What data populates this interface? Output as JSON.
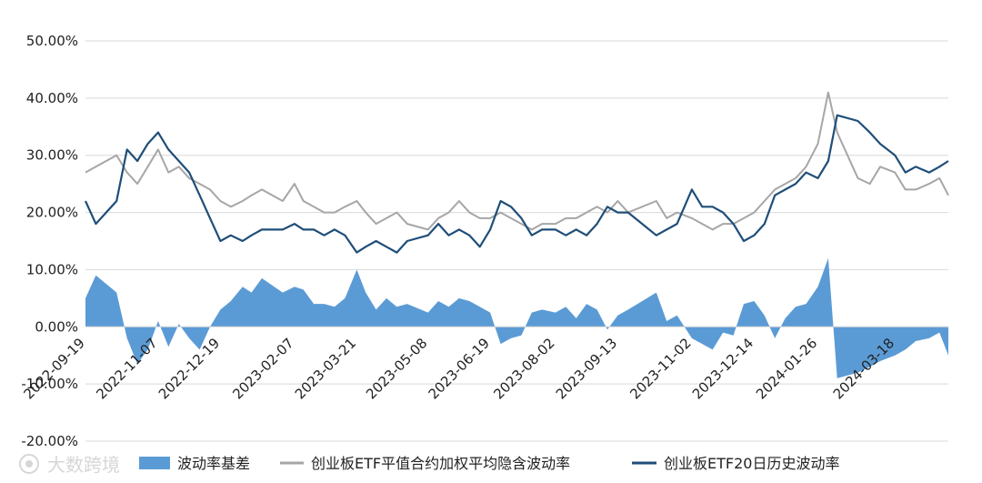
{
  "chart_data": {
    "type": "area+line",
    "title": "",
    "xlabel": "",
    "ylabel": "",
    "ylim": [
      -0.2,
      0.5
    ],
    "y_ticks": [
      0.5,
      0.4,
      0.3,
      0.2,
      0.1,
      0.0,
      -0.1,
      -0.2
    ],
    "y_tick_labels": [
      "50.00%",
      "40.00%",
      "30.00%",
      "20.00%",
      "10.00%",
      "0.00%",
      "-10.00%",
      "-20.00%"
    ],
    "x_range": [
      "2022-09-19",
      "2024-04-23"
    ],
    "x_tick_labels": [
      "2022-09-19",
      "2022-11-07",
      "2022-12-19",
      "2023-02-07",
      "2023-03-21",
      "2023-05-08",
      "2023-06-19",
      "2023-08-02",
      "2023-09-13",
      "2023-11-02",
      "2023-12-14",
      "2024-01-26",
      "2024-03-18"
    ],
    "grid": "horizontal",
    "legend_position": "bottom",
    "colors": {
      "spread": "#5b9bd5",
      "implied": "#a6a6a6",
      "historical": "#1f4e79"
    },
    "series": [
      {
        "name": "波动率基差",
        "kind": "area",
        "x": [
          "2022-09-19",
          "2022-09-26",
          "2022-10-10",
          "2022-10-17",
          "2022-10-24",
          "2022-10-31",
          "2022-11-07",
          "2022-11-14",
          "2022-11-21",
          "2022-11-28",
          "2022-12-05",
          "2022-12-12",
          "2022-12-19",
          "2022-12-26",
          "2023-01-03",
          "2023-01-09",
          "2023-01-16",
          "2023-01-30",
          "2023-02-07",
          "2023-02-13",
          "2023-02-20",
          "2023-02-27",
          "2023-03-06",
          "2023-03-13",
          "2023-03-21",
          "2023-03-27",
          "2023-04-03",
          "2023-04-10",
          "2023-04-17",
          "2023-04-24",
          "2023-05-08",
          "2023-05-15",
          "2023-05-22",
          "2023-05-29",
          "2023-06-05",
          "2023-06-12",
          "2023-06-19",
          "2023-06-26",
          "2023-07-03",
          "2023-07-10",
          "2023-07-17",
          "2023-07-24",
          "2023-08-02",
          "2023-08-09",
          "2023-08-16",
          "2023-08-23",
          "2023-08-30",
          "2023-09-06",
          "2023-09-13",
          "2023-09-20",
          "2023-10-09",
          "2023-10-16",
          "2023-10-23",
          "2023-11-02",
          "2023-11-09",
          "2023-11-16",
          "2023-11-23",
          "2023-11-30",
          "2023-12-07",
          "2023-12-14",
          "2023-12-21",
          "2023-12-28",
          "2024-01-04",
          "2024-01-11",
          "2024-01-18",
          "2024-01-26",
          "2024-02-02",
          "2024-02-08",
          "2024-02-22",
          "2024-03-01",
          "2024-03-08",
          "2024-03-18",
          "2024-03-25",
          "2024-04-01",
          "2024-04-10",
          "2024-04-17",
          "2024-04-23"
        ],
        "values": [
          0.05,
          0.09,
          0.06,
          -0.02,
          -0.065,
          -0.04,
          0.01,
          -0.035,
          0.005,
          -0.02,
          -0.04,
          0.0,
          0.03,
          0.045,
          0.07,
          0.06,
          0.085,
          0.06,
          0.07,
          0.065,
          0.04,
          0.04,
          0.035,
          0.05,
          0.1,
          0.06,
          0.03,
          0.05,
          0.035,
          0.04,
          0.025,
          0.045,
          0.035,
          0.05,
          0.045,
          0.035,
          0.025,
          -0.03,
          -0.02,
          -0.015,
          0.025,
          0.03,
          0.025,
          0.035,
          0.015,
          0.04,
          0.03,
          -0.005,
          0.02,
          0.03,
          0.06,
          0.01,
          0.02,
          -0.02,
          -0.03,
          -0.04,
          -0.01,
          -0.015,
          0.04,
          0.045,
          0.02,
          -0.02,
          0.015,
          0.035,
          0.04,
          0.07,
          0.12,
          -0.09,
          -0.08,
          -0.07,
          -0.06,
          -0.05,
          -0.04,
          -0.025,
          -0.02,
          -0.01,
          -0.05
        ]
      },
      {
        "name": "创业板ETF平值合约加权平均隐含波动率",
        "kind": "line",
        "x": [
          "2022-09-19",
          "2022-09-26",
          "2022-10-10",
          "2022-10-17",
          "2022-10-24",
          "2022-10-31",
          "2022-11-07",
          "2022-11-14",
          "2022-11-21",
          "2022-11-28",
          "2022-12-05",
          "2022-12-12",
          "2022-12-19",
          "2022-12-26",
          "2023-01-03",
          "2023-01-09",
          "2023-01-16",
          "2023-01-30",
          "2023-02-07",
          "2023-02-13",
          "2023-02-20",
          "2023-02-27",
          "2023-03-06",
          "2023-03-13",
          "2023-03-21",
          "2023-03-27",
          "2023-04-03",
          "2023-04-10",
          "2023-04-17",
          "2023-04-24",
          "2023-05-08",
          "2023-05-15",
          "2023-05-22",
          "2023-05-29",
          "2023-06-05",
          "2023-06-12",
          "2023-06-19",
          "2023-06-26",
          "2023-07-03",
          "2023-07-10",
          "2023-07-17",
          "2023-07-24",
          "2023-08-02",
          "2023-08-09",
          "2023-08-16",
          "2023-08-23",
          "2023-08-30",
          "2023-09-06",
          "2023-09-13",
          "2023-09-20",
          "2023-10-09",
          "2023-10-16",
          "2023-10-23",
          "2023-11-02",
          "2023-11-09",
          "2023-11-16",
          "2023-11-23",
          "2023-11-30",
          "2023-12-07",
          "2023-12-14",
          "2023-12-21",
          "2023-12-28",
          "2024-01-04",
          "2024-01-11",
          "2024-01-18",
          "2024-01-26",
          "2024-02-02",
          "2024-02-08",
          "2024-02-22",
          "2024-03-01",
          "2024-03-08",
          "2024-03-18",
          "2024-03-25",
          "2024-04-01",
          "2024-04-10",
          "2024-04-17",
          "2024-04-23"
        ],
        "values": [
          0.27,
          0.28,
          0.3,
          0.27,
          0.25,
          0.28,
          0.31,
          0.27,
          0.28,
          0.26,
          0.25,
          0.24,
          0.22,
          0.21,
          0.22,
          0.23,
          0.24,
          0.22,
          0.25,
          0.22,
          0.21,
          0.2,
          0.2,
          0.21,
          0.22,
          0.2,
          0.18,
          0.19,
          0.2,
          0.18,
          0.17,
          0.19,
          0.2,
          0.22,
          0.2,
          0.19,
          0.19,
          0.2,
          0.19,
          0.18,
          0.17,
          0.18,
          0.18,
          0.19,
          0.19,
          0.2,
          0.21,
          0.2,
          0.22,
          0.2,
          0.22,
          0.19,
          0.2,
          0.19,
          0.18,
          0.17,
          0.18,
          0.18,
          0.19,
          0.2,
          0.22,
          0.24,
          0.25,
          0.26,
          0.28,
          0.32,
          0.41,
          0.34,
          0.26,
          0.25,
          0.28,
          0.27,
          0.24,
          0.24,
          0.25,
          0.26,
          0.23
        ]
      },
      {
        "name": "创业板ETF20日历史波动率",
        "kind": "line",
        "x": [
          "2022-09-19",
          "2022-09-26",
          "2022-10-10",
          "2022-10-17",
          "2022-10-24",
          "2022-10-31",
          "2022-11-07",
          "2022-11-14",
          "2022-11-21",
          "2022-11-28",
          "2022-12-05",
          "2022-12-12",
          "2022-12-19",
          "2022-12-26",
          "2023-01-03",
          "2023-01-09",
          "2023-01-16",
          "2023-01-30",
          "2023-02-07",
          "2023-02-13",
          "2023-02-20",
          "2023-02-27",
          "2023-03-06",
          "2023-03-13",
          "2023-03-21",
          "2023-03-27",
          "2023-04-03",
          "2023-04-10",
          "2023-04-17",
          "2023-04-24",
          "2023-05-08",
          "2023-05-15",
          "2023-05-22",
          "2023-05-29",
          "2023-06-05",
          "2023-06-12",
          "2023-06-19",
          "2023-06-26",
          "2023-07-03",
          "2023-07-10",
          "2023-07-17",
          "2023-07-24",
          "2023-08-02",
          "2023-08-09",
          "2023-08-16",
          "2023-08-23",
          "2023-08-30",
          "2023-09-06",
          "2023-09-13",
          "2023-09-20",
          "2023-10-09",
          "2023-10-16",
          "2023-10-23",
          "2023-11-02",
          "2023-11-09",
          "2023-11-16",
          "2023-11-23",
          "2023-11-30",
          "2023-12-07",
          "2023-12-14",
          "2023-12-21",
          "2023-12-28",
          "2024-01-04",
          "2024-01-11",
          "2024-01-18",
          "2024-01-26",
          "2024-02-02",
          "2024-02-08",
          "2024-02-22",
          "2024-03-01",
          "2024-03-08",
          "2024-03-18",
          "2024-03-25",
          "2024-04-01",
          "2024-04-10",
          "2024-04-17",
          "2024-04-23"
        ],
        "values": [
          0.22,
          0.18,
          0.22,
          0.31,
          0.29,
          0.32,
          0.34,
          0.31,
          0.29,
          0.27,
          0.23,
          0.19,
          0.15,
          0.16,
          0.15,
          0.16,
          0.17,
          0.17,
          0.18,
          0.17,
          0.17,
          0.16,
          0.17,
          0.16,
          0.13,
          0.14,
          0.15,
          0.14,
          0.13,
          0.15,
          0.16,
          0.18,
          0.16,
          0.17,
          0.16,
          0.14,
          0.17,
          0.22,
          0.21,
          0.19,
          0.16,
          0.17,
          0.17,
          0.16,
          0.17,
          0.16,
          0.18,
          0.21,
          0.2,
          0.2,
          0.16,
          0.17,
          0.18,
          0.24,
          0.21,
          0.21,
          0.2,
          0.18,
          0.15,
          0.16,
          0.18,
          0.23,
          0.24,
          0.25,
          0.27,
          0.26,
          0.29,
          0.37,
          0.36,
          0.34,
          0.32,
          0.3,
          0.27,
          0.28,
          0.27,
          0.28,
          0.29
        ]
      }
    ]
  },
  "legend": {
    "items": [
      {
        "label": "波动率基差",
        "icon": "filled-rect"
      },
      {
        "label": "创业板ETF平值合约加权平均隐含波动率",
        "icon": "gray-line"
      },
      {
        "label": "创业板ETF20日历史波动率",
        "icon": "navy-line"
      }
    ]
  },
  "watermark": {
    "text": "大数跨境",
    "icon": "logo-icon"
  }
}
